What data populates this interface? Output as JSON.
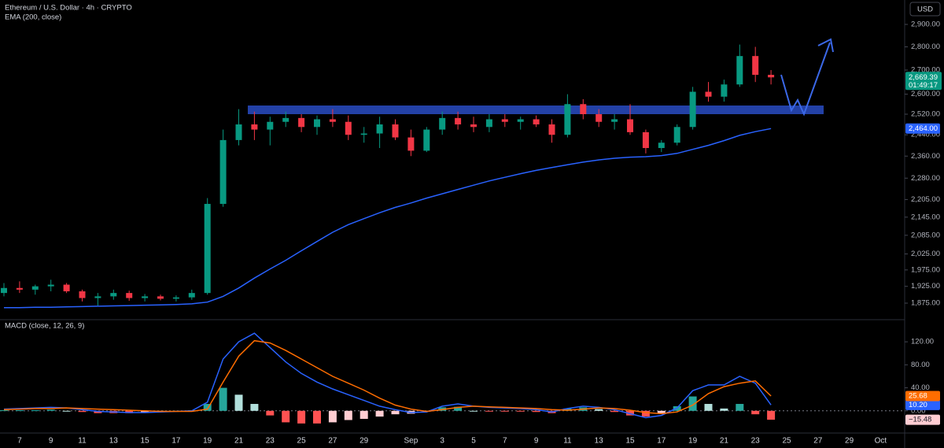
{
  "chart_data": [
    {
      "type": "candlestick",
      "title": "Ethereum / U.S. Dollar · 4h · CRYPTO",
      "currency": "USD",
      "categories": [
        null,
        "7",
        null,
        "9",
        null,
        "11",
        null,
        "13",
        null,
        "15",
        null,
        "17",
        null,
        "19",
        null,
        "21",
        null,
        "23",
        null,
        "25",
        null,
        "27",
        null,
        "29",
        null,
        null,
        "Sep",
        null,
        "3",
        null,
        "5",
        null,
        "7",
        null,
        "9",
        null,
        "11",
        null,
        "13",
        null,
        "15",
        null,
        "17",
        null,
        "19",
        null,
        "21",
        null,
        "23",
        null,
        "25",
        null,
        "27",
        null,
        "29",
        null,
        "Oct"
      ],
      "open": [
        1905,
        1920,
        1915,
        1925,
        1930,
        1910,
        1890,
        1895,
        1905,
        1890,
        1895,
        1888,
        1892,
        1905,
        2190,
        2420,
        2480,
        2460,
        2490,
        2505,
        2470,
        2500,
        2490,
        2440,
        2445,
        2480,
        2430,
        2380,
        2460,
        2505,
        2480,
        2470,
        2500,
        2490,
        2500,
        2480,
        2440,
        2560,
        2520,
        2490,
        2500,
        2450,
        2390,
        2410,
        2470,
        2610,
        2590,
        2640,
        2760,
        2680,
        null,
        null,
        null,
        null,
        null,
        null,
        null
      ],
      "high": [
        1935,
        1940,
        1930,
        1945,
        1935,
        1915,
        1905,
        1915,
        1912,
        1902,
        1900,
        1898,
        1915,
        2210,
        2460,
        2540,
        2530,
        2510,
        2530,
        2520,
        2515,
        2540,
        2515,
        2470,
        2510,
        2500,
        2460,
        2470,
        2530,
        2530,
        2510,
        2520,
        2520,
        2510,
        2515,
        2500,
        2600,
        2580,
        2540,
        2520,
        2560,
        2460,
        2420,
        2480,
        2630,
        2650,
        2660,
        2810,
        2800,
        2700,
        null,
        null,
        null,
        null,
        null,
        null,
        null
      ],
      "low": [
        1895,
        1905,
        1900,
        1910,
        1905,
        1880,
        1868,
        1885,
        1882,
        1880,
        1883,
        1880,
        1885,
        1900,
        2180,
        2400,
        2420,
        2400,
        2470,
        2450,
        2440,
        2470,
        2420,
        2410,
        2390,
        2420,
        2360,
        2375,
        2440,
        2460,
        2450,
        2450,
        2470,
        2460,
        2470,
        2410,
        2430,
        2500,
        2470,
        2460,
        2440,
        2370,
        2375,
        2400,
        2460,
        2570,
        2570,
        2630,
        2650,
        2640,
        null,
        null,
        null,
        null,
        null,
        null,
        null
      ],
      "close": [
        1920,
        1915,
        1925,
        1930,
        1910,
        1890,
        1895,
        1905,
        1890,
        1895,
        1888,
        1892,
        1905,
        2190,
        2420,
        2480,
        2460,
        2490,
        2505,
        2470,
        2500,
        2490,
        2440,
        2445,
        2480,
        2430,
        2380,
        2460,
        2505,
        2480,
        2470,
        2500,
        2490,
        2500,
        2480,
        2440,
        2560,
        2520,
        2490,
        2500,
        2450,
        2390,
        2410,
        2470,
        2610,
        2590,
        2640,
        2760,
        2680,
        2669.39,
        null,
        null,
        null,
        null,
        null,
        null,
        null
      ],
      "up_color": "#089981",
      "down_color": "#f23645",
      "ema": {
        "name": "EMA (200, close)",
        "color": "#2962ff",
        "values": [
          1862,
          1862,
          1863,
          1863,
          1864,
          1865,
          1866,
          1867,
          1868,
          1869,
          1870,
          1871,
          1873,
          1878,
          1895,
          1920,
          1950,
          1978,
          2005,
          2035,
          2065,
          2095,
          2120,
          2140,
          2160,
          2178,
          2193,
          2210,
          2225,
          2240,
          2255,
          2270,
          2283,
          2296,
          2308,
          2318,
          2328,
          2338,
          2346,
          2352,
          2356,
          2358,
          2362,
          2370,
          2385,
          2400,
          2418,
          2438,
          2452,
          2464,
          null,
          null,
          null,
          null,
          null,
          null,
          null
        ],
        "last_label": {
          "value": 2464,
          "label": "2,464.00"
        }
      },
      "last_price": {
        "value": 2669.39,
        "label": "2,669.39"
      },
      "countdown": "01:49:17",
      "log": true,
      "ylim": [
        1829.4,
        3012.9
      ],
      "yticks": [
        {
          "value": 2900,
          "label": "2,900.00"
        },
        {
          "value": 2800,
          "label": "2,800.00"
        },
        {
          "value": 2700,
          "label": "2,700.00"
        },
        {
          "value": 2600,
          "label": "2,600.00"
        },
        {
          "value": 2520,
          "label": "2,520.00"
        },
        {
          "value": 2440,
          "label": "2,440.00"
        },
        {
          "value": 2360,
          "label": "2,360.00"
        },
        {
          "value": 2280,
          "label": "2,280.00"
        },
        {
          "value": 2205,
          "label": "2,205.00"
        },
        {
          "value": 2145,
          "label": "2,145.00"
        },
        {
          "value": 2085,
          "label": "2,085.00"
        },
        {
          "value": 2025,
          "label": "2,025.00"
        },
        {
          "value": 1975,
          "label": "1,975.00"
        },
        {
          "value": 1925,
          "label": "1,925.00"
        },
        {
          "value": 1875,
          "label": "1,875.00"
        }
      ],
      "grid": false
    },
    {
      "type": "macd",
      "title": "MACD (close, 12, 26, 9)",
      "ylim": [
        -35.9,
        150.3
      ],
      "yticks": [
        {
          "value": 120,
          "label": "120.00"
        },
        {
          "value": 80,
          "label": "80.00"
        },
        {
          "value": 40,
          "label": "40.00"
        },
        {
          "value": 0,
          "label": "0.00"
        }
      ],
      "zero_line": true,
      "series": [
        {
          "color": "#2962ff",
          "values": [
            3,
            4,
            5,
            6,
            5,
            2,
            -1,
            -2,
            -3,
            -3,
            -2,
            -1,
            0,
            15,
            90,
            120,
            135,
            110,
            85,
            65,
            50,
            38,
            28,
            18,
            8,
            2,
            -3,
            -2,
            8,
            12,
            8,
            6,
            5,
            4,
            2,
            -2,
            4,
            8,
            6,
            2,
            -5,
            -12,
            -8,
            5,
            35,
            45,
            45,
            60,
            48,
            10.2,
            null,
            null,
            null,
            null,
            null,
            null,
            null
          ],
          "last_label": {
            "value": 10.2,
            "label": "10.20"
          }
        },
        {
          "color": "#ff6d00",
          "values": [
            2,
            3,
            4,
            4,
            5,
            4,
            3,
            2,
            1,
            0,
            -1,
            -1,
            -1,
            3,
            50,
            95,
            122,
            118,
            105,
            90,
            75,
            60,
            48,
            36,
            22,
            10,
            3,
            -1,
            2,
            6,
            8,
            7,
            6,
            5,
            4,
            2,
            1,
            3,
            5,
            4,
            1,
            -3,
            -5,
            -2,
            10,
            30,
            42,
            48,
            52,
            25.68,
            null,
            null,
            null,
            null,
            null,
            null,
            null
          ],
          "last_label": {
            "value": 25.68,
            "label": "25.68"
          }
        }
      ],
      "histogram": {
        "values": [
          1,
          1,
          1,
          2,
          0,
          -2,
          -4,
          -4,
          -4,
          -3,
          -1,
          0,
          1,
          12,
          40,
          28,
          12,
          -8,
          -20,
          -22,
          -22,
          -20,
          -16,
          -14,
          -10,
          -6,
          -5,
          -1,
          6,
          7,
          0,
          -1,
          -1,
          -1,
          -2,
          -4,
          4,
          6,
          3,
          -2,
          -8,
          -10,
          -4,
          8,
          25,
          12,
          4,
          12,
          -6,
          -15.48,
          null,
          null,
          null,
          null,
          null,
          null,
          null
        ],
        "colors": {
          "up_rising": "#26a69a",
          "up_falling": "#b2dfdb",
          "down_falling": "#ff5252",
          "down_rising": "#ffcdd2"
        },
        "last_label": {
          "value": -15.48,
          "label": "−15.48"
        }
      }
    }
  ]
}
